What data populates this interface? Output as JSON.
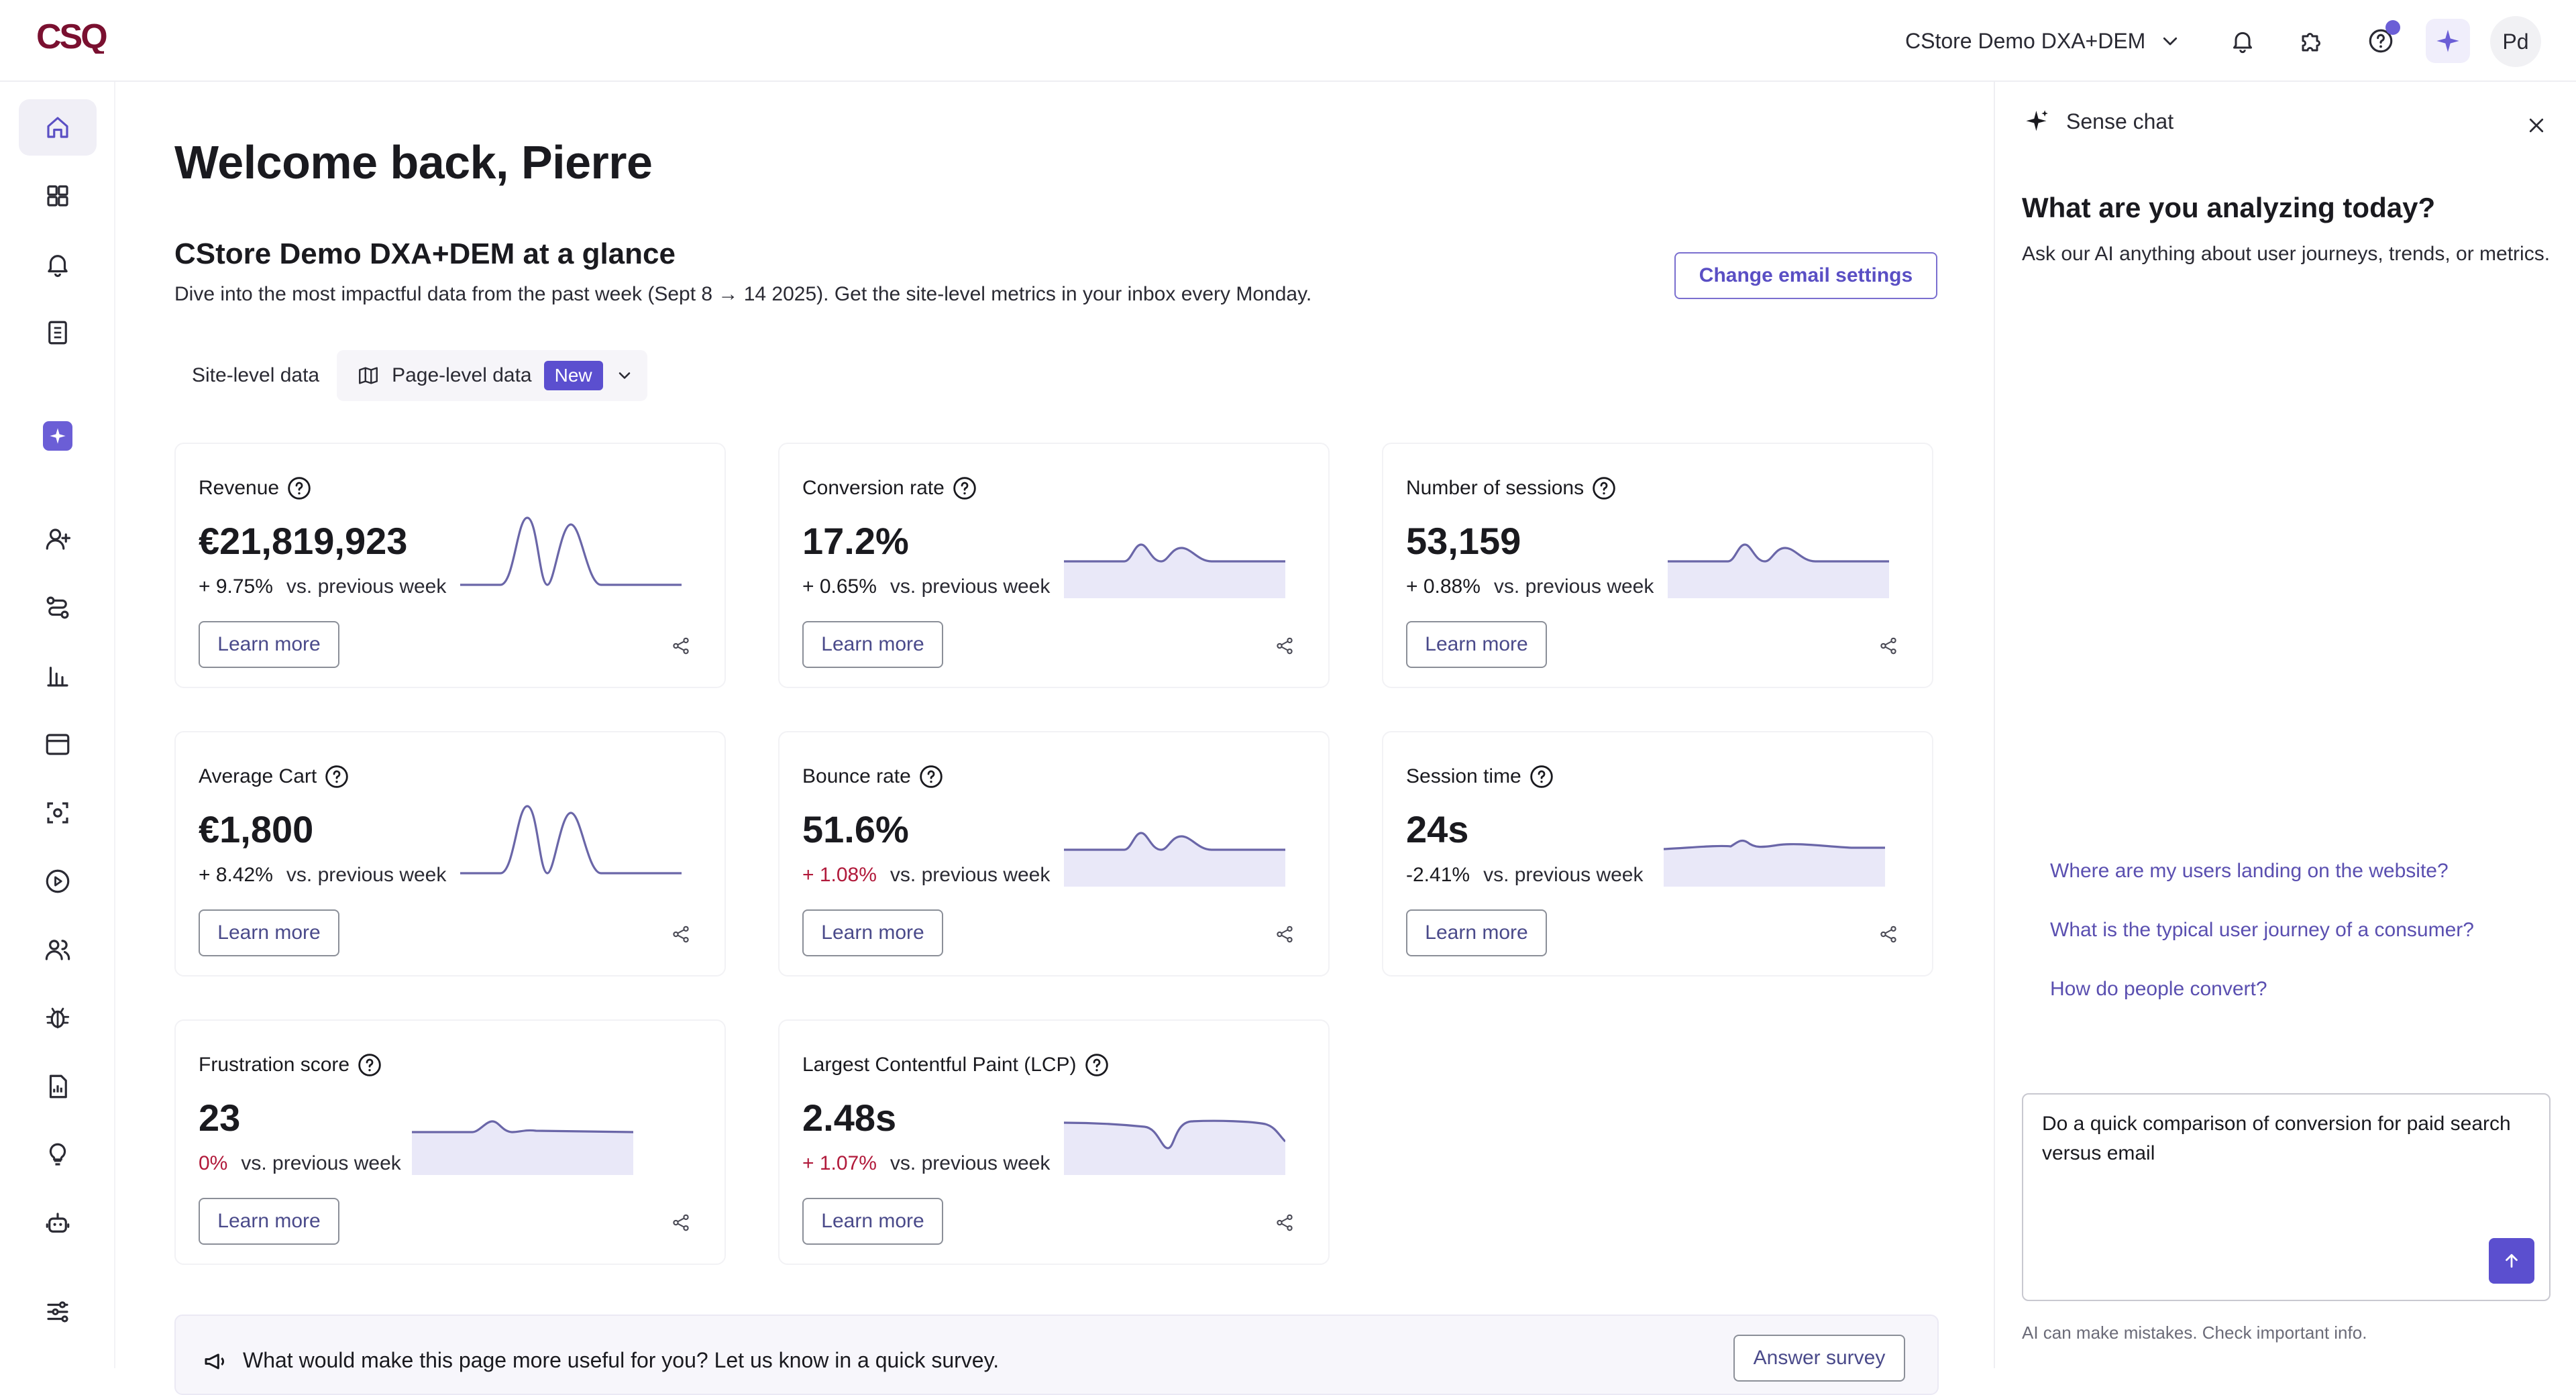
{
  "header": {
    "logo_text": "CSQ",
    "site_name": "CStore Demo DXA+DEM",
    "avatar_initials": "Pd",
    "accent_color": "#6b5ed6"
  },
  "sidebar": {
    "items": [
      {
        "icon": "home-icon",
        "active": true
      },
      {
        "icon": "dashboard-grid-icon"
      },
      {
        "icon": "bell-icon"
      },
      {
        "icon": "list-book-icon"
      },
      {
        "icon": "ai-sparkle-icon"
      },
      {
        "icon": "add-user-icon"
      },
      {
        "icon": "journey-icon"
      },
      {
        "icon": "bar-chart-icon"
      },
      {
        "icon": "browser-window-icon"
      },
      {
        "icon": "zone-focus-icon"
      },
      {
        "icon": "play-circle-icon"
      },
      {
        "icon": "users-icon"
      },
      {
        "icon": "bug-icon"
      },
      {
        "icon": "report-icon"
      },
      {
        "icon": "lightbulb-icon"
      },
      {
        "icon": "bot-icon"
      },
      {
        "icon": "settings-sliders-icon"
      }
    ]
  },
  "main": {
    "welcome": "Welcome back, Pierre",
    "glance_title": "CStore Demo DXA+DEM at a glance",
    "glance_desc": "Dive into the most impactful data from the past week (Sept 8 → 14 2025). Get the site-level metrics in your inbox every Monday.",
    "change_email_label": "Change email settings",
    "tab_site": "Site-level data",
    "tab_page": "Page-level data",
    "tab_page_badge": "New",
    "learn_more": "Learn more",
    "cards": [
      {
        "title": "Revenue",
        "value": "€21,819,923",
        "delta": "+ 9.75%",
        "delta_kind": "pos",
        "compare": "vs. previous week",
        "spark": "peaks"
      },
      {
        "title": "Conversion rate",
        "value": "17.2%",
        "delta": "+ 0.65%",
        "delta_kind": "pos",
        "compare": "vs. previous week",
        "spark": "bumps"
      },
      {
        "title": "Number of sessions",
        "value": "53,159",
        "delta": "+ 0.88%",
        "delta_kind": "pos",
        "compare": "vs. previous week",
        "spark": "bumps"
      },
      {
        "title": "Average Cart",
        "value": "€1,800",
        "delta": "+ 8.42%",
        "delta_kind": "pos",
        "compare": "vs. previous week",
        "spark": "peaks"
      },
      {
        "title": "Bounce rate",
        "value": "51.6%",
        "delta": "+ 1.08%",
        "delta_kind": "neg",
        "compare": "vs. previous week",
        "spark": "bumps"
      },
      {
        "title": "Session time",
        "value": "24s",
        "delta": "-2.41%",
        "delta_kind": "pos",
        "compare": "vs. previous week",
        "spark": "flat"
      },
      {
        "title": "Frustration score",
        "value": "23",
        "delta": "0%",
        "delta_kind": "neg",
        "compare": "vs. previous week",
        "spark": "single"
      },
      {
        "title": "Largest Contentful Paint (LCP)",
        "value": "2.48s",
        "delta": "+ 1.07%",
        "delta_kind": "neg",
        "compare": "vs. previous week",
        "spark": "dip"
      }
    ],
    "survey_text": "What would make this page more useful for you? Let us know in a quick survey.",
    "survey_button": "Answer survey"
  },
  "chat": {
    "header": "Sense chat",
    "title": "What are you analyzing today?",
    "subtitle": "Ask our AI anything about user journeys, trends, or metrics.",
    "suggestions": [
      "Where are my users landing on the website?",
      "What is the typical user journey of a consumer?",
      "How do people convert?"
    ],
    "input_value": "Do a quick comparison of conversion for paid search versus email",
    "disclaimer": "AI can make mistakes. Check important info."
  }
}
